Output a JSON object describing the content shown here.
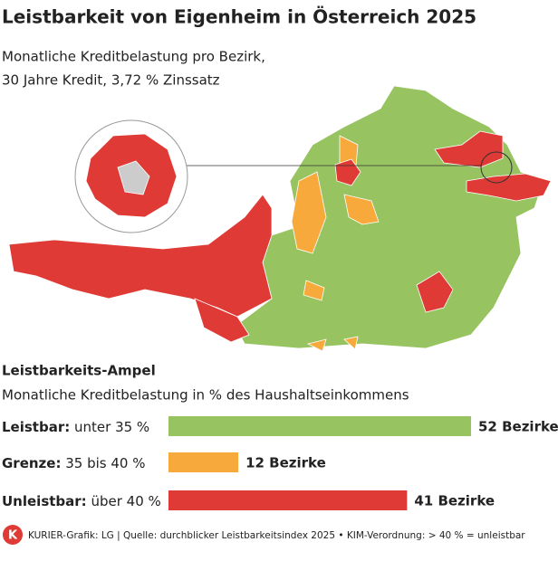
{
  "chart_data": {
    "type": "bar",
    "title": "Leistbarkeit von Eigenheim in Österreich 2025",
    "subtitle_lines": [
      "Monatliche Kreditbelastung pro Bezirk,",
      "30 Jahre Kredit, 3,72 % Zinssatz"
    ],
    "legend_title": "Leistbarkeits-Ampel",
    "legend_subtitle": "Monatliche Kreditbelastung in % des Haushaltseinkommens",
    "categories": [
      "Leistbar:",
      "Grenze:",
      "Unleistbar:"
    ],
    "category_ranges": [
      "unter 35 %",
      "35 bis 40 %",
      "über 40 %"
    ],
    "values": [
      52,
      12,
      41
    ],
    "value_labels": [
      "52 Bezirke",
      "12 Bezirke",
      "41 Bezirke"
    ],
    "colors": [
      "#97c461",
      "#f8a93b",
      "#df3a35"
    ],
    "footer": "KURIER-Grafik: LG | Quelle: durchblicker Leistbarkeitsindex 2025 • KIM-Verordnung: > 40 % = unleistbar",
    "logo": "K"
  }
}
